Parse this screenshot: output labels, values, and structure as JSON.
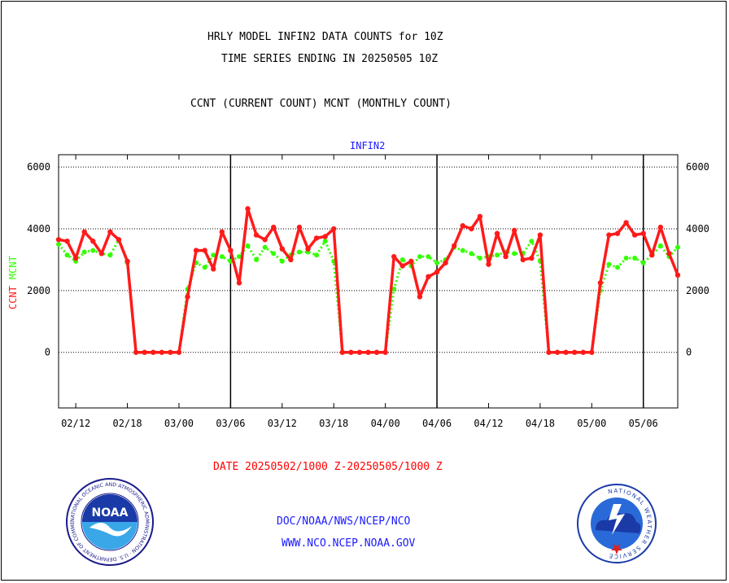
{
  "header": {
    "title_line1": "HRLY MODEL INFIN2 DATA COUNTS for 10Z",
    "title_line2": "TIME SERIES ENDING IN 20250505 10Z",
    "subtitle": "CCNT (CURRENT COUNT) MCNT (MONTHLY COUNT)"
  },
  "chart_data": {
    "type": "line",
    "title": "INFIN2",
    "ylabel_series1": "CCNT",
    "ylabel_series2": "MCNT",
    "ylim": [
      -1800,
      6400
    ],
    "yticks": [
      0,
      2000,
      4000,
      6000
    ],
    "ytick_labels": [
      "0",
      "2000",
      "4000",
      "6000"
    ],
    "xlim": [
      0,
      72
    ],
    "xticks": [
      2,
      8,
      14,
      20,
      26,
      32,
      38,
      44,
      50,
      56,
      62,
      68
    ],
    "xtick_labels": [
      "02/12",
      "02/18",
      "03/00",
      "03/06",
      "03/12",
      "03/18",
      "04/00",
      "04/06",
      "04/12",
      "04/18",
      "05/00",
      "05/06"
    ],
    "day_boundaries": [
      20,
      44,
      68
    ],
    "grid": "horizontal dotted",
    "colors": {
      "CCNT": "#ff1a1a",
      "MCNT": "#33ff00"
    },
    "series": [
      {
        "name": "CCNT",
        "style": "solid",
        "x": [
          0,
          1,
          2,
          3,
          4,
          5,
          6,
          7,
          8,
          9,
          10,
          11,
          12,
          13,
          14,
          15,
          16,
          17,
          18,
          19,
          20,
          21,
          22,
          23,
          24,
          25,
          26,
          27,
          28,
          29,
          30,
          31,
          32,
          33,
          34,
          35,
          36,
          37,
          38,
          39,
          40,
          41,
          42,
          43,
          44,
          45,
          46,
          47,
          48,
          49,
          50,
          51,
          52,
          53,
          54,
          55,
          56,
          57,
          58,
          59,
          60,
          61,
          62,
          63,
          64,
          65,
          66,
          67,
          68,
          69,
          70,
          71,
          72
        ],
        "values": [
          3650,
          3600,
          3050,
          3900,
          3600,
          3200,
          3900,
          3650,
          2950,
          0,
          0,
          0,
          0,
          0,
          0,
          1800,
          3300,
          3300,
          2700,
          3900,
          3300,
          2250,
          4650,
          3800,
          3650,
          4050,
          3350,
          3000,
          4050,
          3350,
          3700,
          3750,
          4000,
          0,
          0,
          0,
          0,
          0,
          0,
          3100,
          2800,
          2950,
          1800,
          2450,
          2600,
          2900,
          3450,
          4100,
          4000,
          4400,
          2850,
          3850,
          3100,
          3950,
          3000,
          3050,
          3800,
          0,
          0,
          0,
          0,
          0,
          0,
          2250,
          3800,
          3850,
          4200,
          3800,
          3850,
          3150,
          4050,
          3200,
          2500
        ]
      },
      {
        "name": "MCNT",
        "style": "dotted",
        "x": [
          0,
          1,
          2,
          3,
          4,
          5,
          6,
          7,
          8,
          9,
          10,
          11,
          12,
          13,
          14,
          15,
          16,
          17,
          18,
          19,
          20,
          21,
          22,
          23,
          24,
          25,
          26,
          27,
          28,
          29,
          30,
          31,
          32,
          33,
          34,
          35,
          36,
          37,
          38,
          39,
          40,
          41,
          42,
          43,
          44,
          45,
          46,
          47,
          48,
          49,
          50,
          51,
          52,
          53,
          54,
          55,
          56,
          57,
          58,
          59,
          60,
          61,
          62,
          63,
          64,
          65,
          66,
          67,
          68,
          69,
          70,
          71,
          72
        ],
        "values": [
          3500,
          3150,
          2950,
          3250,
          3300,
          3200,
          3150,
          3650,
          2900,
          0,
          0,
          0,
          0,
          0,
          0,
          2050,
          2900,
          2750,
          3150,
          3100,
          2950,
          3100,
          3450,
          3000,
          3400,
          3200,
          2950,
          3150,
          3250,
          3250,
          3150,
          3600,
          2950,
          0,
          0,
          0,
          0,
          0,
          0,
          2050,
          3000,
          2800,
          3100,
          3100,
          2900,
          3000,
          3400,
          3300,
          3200,
          3050,
          3100,
          3150,
          3250,
          3200,
          3200,
          3600,
          2950,
          0,
          0,
          0,
          0,
          0,
          0,
          2000,
          2850,
          2750,
          3050,
          3050,
          2900,
          3150,
          3450,
          3100,
          3400
        ]
      }
    ]
  },
  "footer": {
    "date_range": "DATE 20250502/1000 Z-20250505/1000 Z",
    "link1": "DOC/NOAA/NWS/NCEP/NCO",
    "link2": "WWW.NCO.NCEP.NOAA.GOV"
  },
  "logos": {
    "left": {
      "icon": "noaa-logo",
      "text": "NOAA",
      "ring_text": "NATIONAL OCEANIC AND ATMOSPHERIC ADMINISTRATION · U.S. DEPARTMENT OF COMMERCE"
    },
    "right": {
      "icon": "nws-logo",
      "ring_text": "NATIONAL WEATHER SERVICE"
    }
  }
}
